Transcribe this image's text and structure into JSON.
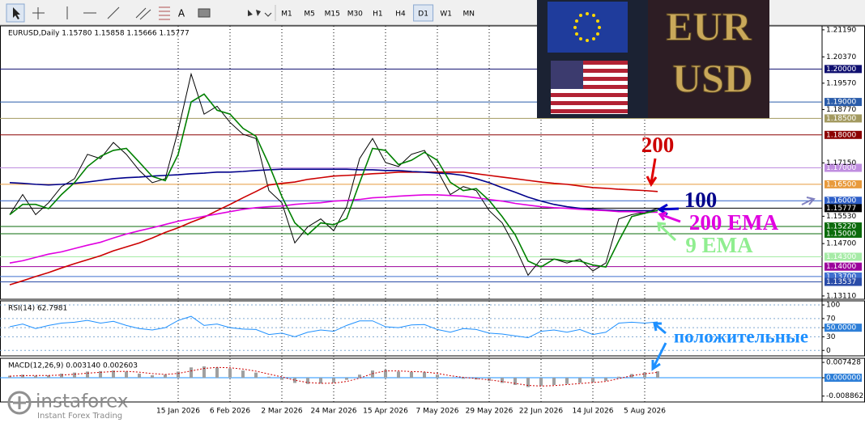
{
  "toolbar": {
    "font_button": "A",
    "timeframes": [
      "M1",
      "M5",
      "M15",
      "M30",
      "H1",
      "H4",
      "D1",
      "W1",
      "MN"
    ],
    "active_timeframe": 6
  },
  "image_overlay": {
    "top_text": "EUR",
    "bottom_text": "USD"
  },
  "logo": {
    "name": "instaforex",
    "tagline": "Instant Forex Trading"
  },
  "chart_data": [
    {
      "type": "line",
      "title": "EURUSD,Daily  1.15780 1.15858 1.15666 1.15777",
      "categories": [
        null,
        null,
        null,
        null,
        null,
        null,
        null,
        null,
        null,
        null,
        null,
        null,
        null,
        "15 Jan 2026",
        null,
        null,
        null,
        "6 Feb 2026",
        null,
        null,
        null,
        "2 Mar 2026",
        null,
        null,
        null,
        "24 Mar 2026",
        null,
        null,
        null,
        "15 Apr 2026",
        null,
        null,
        null,
        "7 May 2026",
        null,
        null,
        null,
        "29 May 2026",
        null,
        null,
        null,
        "22 Jun 2026",
        null,
        null,
        null,
        "14 Jul 2026",
        null,
        null,
        null,
        "5 Aug 2026",
        null
      ],
      "series": [
        {
          "color": "#000000",
          "values": [
            1.1558,
            1.1619,
            1.1558,
            1.1594,
            1.1643,
            1.1667,
            1.1741,
            1.1728,
            1.1777,
            1.1741,
            1.1692,
            1.1655,
            1.1667,
            1.1814,
            1.1985,
            1.1863,
            1.1887,
            1.1838,
            1.1802,
            1.1789,
            1.1631,
            1.1594,
            1.1472,
            1.1521,
            1.1545,
            1.1509,
            1.1582,
            1.1728,
            1.1789,
            1.1716,
            1.1704,
            1.1741,
            1.1753,
            1.1692,
            1.1619,
            1.1643,
            1.1631,
            1.157,
            1.1533,
            1.146,
            1.1374,
            1.1423,
            1.1423,
            1.1411,
            1.1423,
            1.1387,
            1.1411,
            1.1545,
            1.1558,
            1.1565,
            1.1577
          ]
        },
        {
          "name": "200",
          "color": "#cc0000",
          "values": [
            1.1345,
            1.1357,
            1.137,
            1.1382,
            1.1396,
            1.1409,
            1.1421,
            1.1433,
            1.1448,
            1.146,
            1.1472,
            1.1487,
            1.1504,
            1.1518,
            1.1535,
            1.155,
            1.157,
            1.1589,
            1.1609,
            1.1628,
            1.1648,
            1.1653,
            1.1657,
            1.1665,
            1.167,
            1.1675,
            1.1677,
            1.1679,
            1.1682,
            1.1684,
            1.1687,
            1.1687,
            1.1687,
            1.1687,
            1.1687,
            1.1687,
            1.1682,
            1.1677,
            1.1672,
            1.1667,
            1.1662,
            1.1657,
            1.1653,
            1.165,
            1.1645,
            1.164,
            1.1638,
            1.1635,
            1.1633,
            1.1631,
            1.1628
          ]
        },
        {
          "name": "100",
          "color": "#00008b",
          "values": [
            1.1655,
            1.1653,
            1.165,
            1.1648,
            1.165,
            1.1653,
            1.1657,
            1.1662,
            1.1667,
            1.167,
            1.1672,
            1.1675,
            1.1677,
            1.1679,
            1.1682,
            1.1684,
            1.1687,
            1.1687,
            1.1689,
            1.1692,
            1.1694,
            1.1696,
            1.1696,
            1.1696,
            1.1696,
            1.1696,
            1.1696,
            1.1694,
            1.1694,
            1.1692,
            1.1692,
            1.1689,
            1.1687,
            1.1684,
            1.1682,
            1.1677,
            1.1667,
            1.1655,
            1.164,
            1.1626,
            1.1611,
            1.1599,
            1.1589,
            1.1582,
            1.1577,
            1.1574,
            1.1572,
            1.157,
            1.157,
            1.157,
            1.157
          ]
        },
        {
          "name": "200 EMA",
          "color": "#e000e0",
          "values": [
            1.1411,
            1.1418,
            1.1428,
            1.1438,
            1.1445,
            1.1455,
            1.1465,
            1.1474,
            1.1487,
            1.1499,
            1.1509,
            1.1518,
            1.1528,
            1.1538,
            1.1545,
            1.1553,
            1.156,
            1.1567,
            1.1574,
            1.1579,
            1.1582,
            1.1584,
            1.1589,
            1.1592,
            1.1594,
            1.1599,
            1.1601,
            1.1604,
            1.1609,
            1.1611,
            1.1614,
            1.1616,
            1.1618,
            1.1618,
            1.1616,
            1.1614,
            1.1609,
            1.1604,
            1.1599,
            1.1592,
            1.1587,
            1.1582,
            1.1579,
            1.1577,
            1.1574,
            1.1572,
            1.157,
            1.1567,
            1.1567,
            1.1565,
            1.1565
          ]
        },
        {
          "name": "9 EMA",
          "color": "#008000",
          "label_color": "#90ee90",
          "values": [
            1.1558,
            1.1589,
            1.1589,
            1.1576,
            1.1619,
            1.1655,
            1.1704,
            1.1735,
            1.1753,
            1.1759,
            1.1717,
            1.1674,
            1.1661,
            1.1741,
            1.19,
            1.1924,
            1.1875,
            1.1863,
            1.182,
            1.1796,
            1.171,
            1.1613,
            1.1533,
            1.1497,
            1.1533,
            1.1527,
            1.1546,
            1.1655,
            1.1759,
            1.1753,
            1.171,
            1.1723,
            1.1747,
            1.1723,
            1.1656,
            1.1631,
            1.1637,
            1.1601,
            1.1552,
            1.1497,
            1.1417,
            1.1399,
            1.1423,
            1.1417,
            1.1417,
            1.1405,
            1.1399,
            1.1478,
            1.1552,
            1.1562,
            1.1571
          ]
        }
      ],
      "ylim": [
        1.1301,
        1.2131
      ],
      "yticks": [
        {
          "value": 1.2119,
          "label": "1.21190"
        },
        {
          "value": 1.2037,
          "label": "1.20370"
        },
        {
          "value": 1.1957,
          "label": "1.19570"
        },
        {
          "value": 1.1877,
          "label": "1.18770"
        },
        {
          "value": 1.1715,
          "label": "1.17150"
        },
        {
          "value": 1.1553,
          "label": "1.15530"
        },
        {
          "value": 1.147,
          "label": "1.14700"
        },
        {
          "value": 1.1311,
          "label": "1.13110"
        }
      ],
      "levels": [
        {
          "value": 1.2,
          "label": "1.20000",
          "color": "#101070"
        },
        {
          "value": 1.19,
          "label": "1.19000",
          "color": "#2a5caa"
        },
        {
          "value": 1.185,
          "label": "1.18500",
          "color": "#a39a60"
        },
        {
          "value": 1.18,
          "label": "1.18000",
          "color": "#8b0000"
        },
        {
          "value": 1.17,
          "label": "1.17000",
          "color": "#c08ee0"
        },
        {
          "value": 1.165,
          "label": "1.16500",
          "color": "#e89a3c"
        },
        {
          "value": 1.16,
          "label": "1.16000",
          "color": "#2e5fc8"
        },
        {
          "value": 1.15777,
          "label": "1.15777",
          "color": "#000000"
        },
        {
          "value": 1.1522,
          "label": "1.15220",
          "color": "#0b6b0b"
        },
        {
          "value": 1.15,
          "label": "1.15000",
          "color": "#0b6b0b"
        },
        {
          "value": 1.143,
          "label": "1.14300",
          "color": "#a6eba6"
        },
        {
          "value": 1.14,
          "label": "1.14000",
          "color": "#9b009b"
        },
        {
          "value": 1.137,
          "label": "1.13700",
          "color": "#3f6fcf"
        },
        {
          "value": 1.13537,
          "label": "1.13537",
          "color": "#2a4ca8"
        }
      ],
      "annotations": [
        "положительные"
      ]
    },
    {
      "type": "line",
      "title": "RSI(14) 62.7981",
      "grid": true,
      "highlight_tick": 2,
      "series": [
        {
          "color": "#1e90ff",
          "values": [
            52,
            58,
            48,
            55,
            60,
            62,
            66,
            60,
            64,
            55,
            48,
            45,
            50,
            66,
            75,
            55,
            58,
            50,
            47,
            46,
            35,
            38,
            30,
            40,
            45,
            42,
            55,
            65,
            65,
            52,
            50,
            56,
            57,
            46,
            40,
            48,
            46,
            38,
            36,
            32,
            28,
            42,
            45,
            40,
            46,
            35,
            40,
            60,
            62,
            60,
            62.7981
          ]
        }
      ],
      "ylim": [
        -12,
        109
      ],
      "yticks": [
        100,
        70,
        {
          "value": 50,
          "label": "50.0000"
        },
        30,
        0
      ]
    },
    {
      "type": "bar",
      "title": "MACD(12,26,9) 0.003140 0.002603",
      "highlight_tick": 1,
      "series": [
        {
          "color": "#a0a0a0",
          "values": [
            0.001,
            0.0015,
            0.001,
            0.0012,
            0.002,
            0.0025,
            0.003,
            0.0032,
            0.0035,
            0.003,
            0.002,
            0.0012,
            0.0015,
            0.003,
            0.005,
            0.0055,
            0.005,
            0.0045,
            0.0035,
            0.0025,
            0.0005,
            -0.001,
            -0.0025,
            -0.003,
            -0.0028,
            -0.0025,
            -0.001,
            0.0015,
            0.0035,
            0.0038,
            0.003,
            0.0028,
            0.0027,
            0.0015,
            0.0002,
            -0.0005,
            -0.0008,
            -0.0015,
            -0.0025,
            -0.0035,
            -0.0045,
            -0.004,
            -0.0035,
            -0.003,
            -0.0025,
            -0.002,
            -0.0015,
            0.0005,
            0.0018,
            0.0026,
            0.00314
          ]
        },
        {
          "color": "#cc0000",
          "values": [
            0.0008,
            0.001,
            0.0011,
            0.0011,
            0.0013,
            0.0017,
            0.0022,
            0.0026,
            0.003,
            0.0031,
            0.0027,
            0.002,
            0.0016,
            0.0021,
            0.0033,
            0.0045,
            0.005,
            0.0048,
            0.0042,
            0.0032,
            0.0018,
            0.0004,
            -0.0012,
            -0.0023,
            -0.0027,
            -0.0026,
            -0.0018,
            -0.0002,
            0.002,
            0.0033,
            0.0033,
            0.003,
            0.0028,
            0.0021,
            0.001,
            0.0002,
            -0.0004,
            -0.001,
            -0.0018,
            -0.0027,
            -0.0037,
            -0.004,
            -0.0038,
            -0.0033,
            -0.0028,
            -0.0023,
            -0.0018,
            -0.0004,
            0.001,
            0.0019,
            0.002603
          ]
        }
      ],
      "ylim": [
        -0.0117,
        0.0094
      ],
      "yticks": [
        0.007428,
        {
          "value": 0,
          "label": "0.000000"
        },
        -0.008862
      ]
    }
  ]
}
